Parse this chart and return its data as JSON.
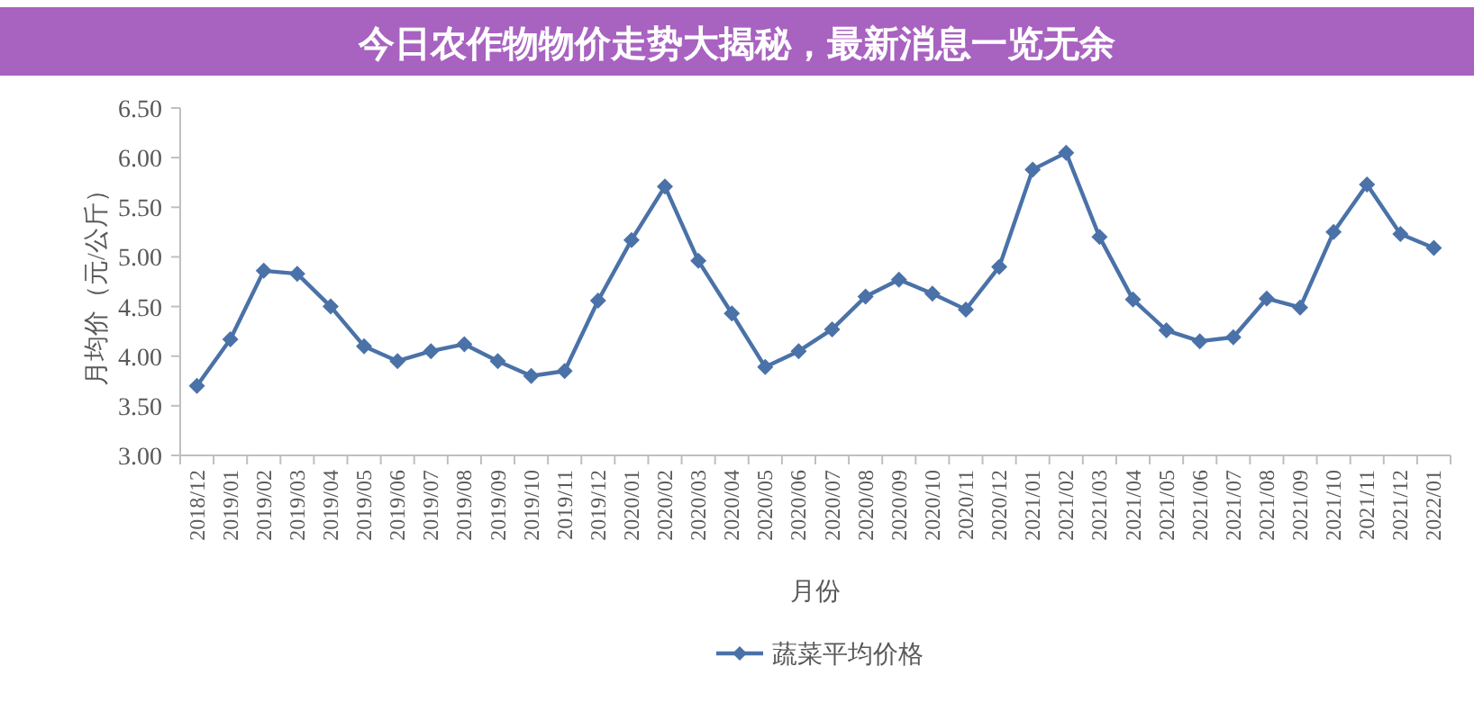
{
  "chart_data": {
    "type": "line",
    "title": "今日农作物物价走势大揭秘，最新消息一览无余",
    "xlabel": "月份",
    "ylabel": "月均价（元/公斤）",
    "categories": [
      "2018/12",
      "2019/01",
      "2019/02",
      "2019/03",
      "2019/04",
      "2019/05",
      "2019/06",
      "2019/07",
      "2019/08",
      "2019/09",
      "2019/10",
      "2019/11",
      "2019/12",
      "2020/01",
      "2020/02",
      "2020/03",
      "2020/04",
      "2020/05",
      "2020/06",
      "2020/07",
      "2020/08",
      "2020/09",
      "2020/10",
      "2020/11",
      "2020/12",
      "2021/01",
      "2021/02",
      "2021/03",
      "2021/04",
      "2021/05",
      "2021/06",
      "2021/07",
      "2021/08",
      "2021/09",
      "2021/10",
      "2021/11",
      "2021/12",
      "2022/01"
    ],
    "series": [
      {
        "name": "蔬菜平均价格",
        "color": "#4a72a8",
        "values": [
          3.7,
          4.17,
          4.86,
          4.83,
          4.5,
          4.1,
          3.95,
          4.05,
          4.12,
          3.95,
          3.8,
          3.85,
          4.56,
          5.17,
          5.71,
          4.96,
          4.43,
          3.89,
          4.05,
          4.27,
          4.6,
          4.77,
          4.63,
          4.47,
          4.9,
          5.88,
          6.05,
          5.2,
          4.57,
          4.26,
          4.15,
          4.19,
          4.58,
          4.49,
          5.25,
          5.73,
          5.23,
          5.09
        ]
      }
    ],
    "ylim": [
      3,
      6.5
    ],
    "yticks": [
      {
        "value": 3,
        "label": "3.00"
      },
      {
        "value": 3.5,
        "label": "3.50"
      },
      {
        "value": 4,
        "label": "4.00"
      },
      {
        "value": 4.5,
        "label": "4.50"
      },
      {
        "value": 5,
        "label": "5.00"
      },
      {
        "value": 5.5,
        "label": "5.50"
      },
      {
        "value": 6,
        "label": "6.00"
      },
      {
        "value": 6.5,
        "label": "6.50"
      }
    ],
    "marker": "diamond",
    "legend": "bottom"
  }
}
